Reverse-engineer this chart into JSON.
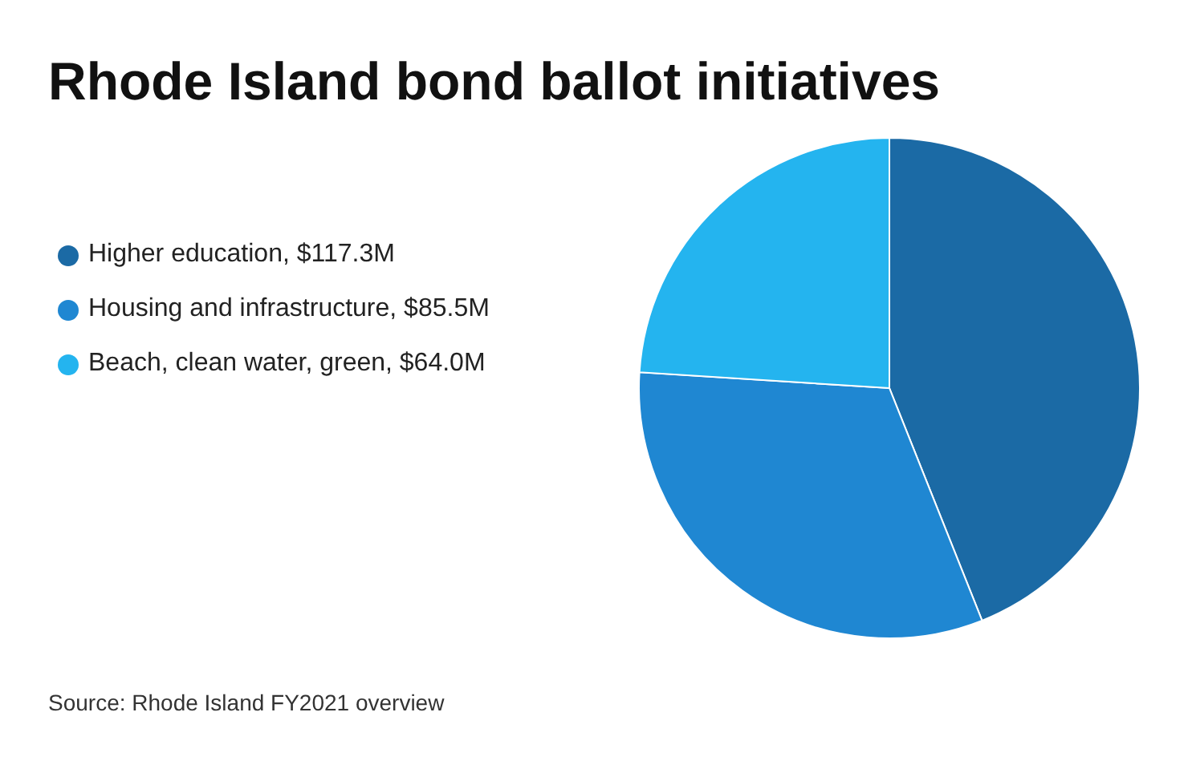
{
  "chart_data": {
    "type": "pie",
    "title": "Rhode Island bond ballot initiatives",
    "categories": [
      "Higher education, $117.3M",
      "Housing and infrastructure, $85.5M",
      "Beach, clean water, green, $64.0M"
    ],
    "values": [
      117.3,
      85.5,
      64.0
    ],
    "colors": [
      "#1b6aa5",
      "#1f87d2",
      "#24b4ef"
    ],
    "legend": "left",
    "annotations": [
      "Source: Rhode Island FY2021 overview"
    ]
  }
}
